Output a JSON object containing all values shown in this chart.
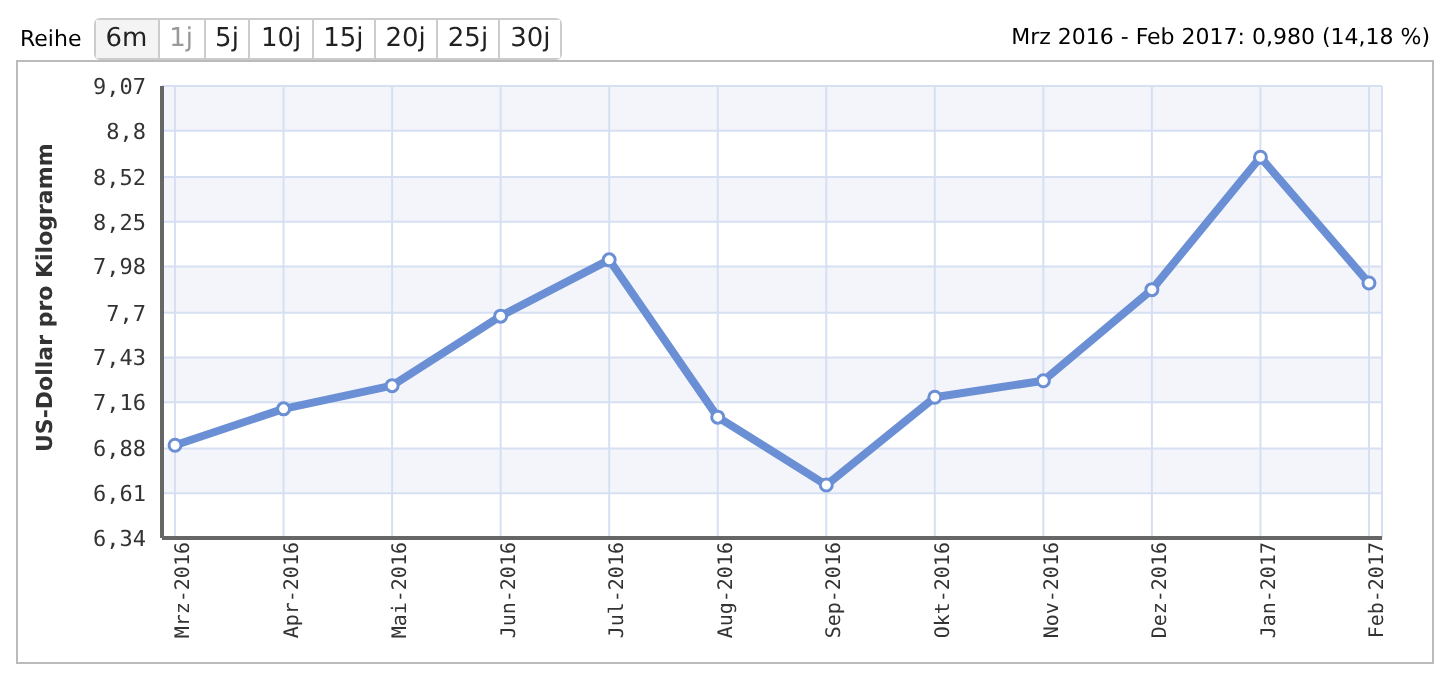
{
  "chart_data": {
    "type": "line",
    "subtitle": "Mrz 2016 - Feb 2017: 0,980 (14,18 %)",
    "ylabel": "US-Dollar pro Kilogramm",
    "annotations": [
      "Reihe",
      "6m",
      "1j",
      "5j",
      "10j",
      "15j",
      "20j",
      "25j",
      "30j"
    ],
    "categories": [
      "Mrz-2016",
      "Apr-2016",
      "Mai-2016",
      "Jun-2016",
      "Jul-2016",
      "Aug-2016",
      "Sep-2016",
      "Okt-2016",
      "Nov-2016",
      "Dez-2016",
      "Jan-2017",
      "Feb-2017"
    ],
    "series": [
      {
        "color": "#6a8fd4",
        "values": [
          6.9,
          7.12,
          7.26,
          7.68,
          8.02,
          7.07,
          6.66,
          7.19,
          7.29,
          7.84,
          8.64,
          7.88
        ]
      }
    ],
    "ylim": [
      6.34,
      9.07
    ],
    "yticks": [
      {
        "value": 6.34,
        "label": "6,34"
      },
      {
        "value": 6.61,
        "label": "6,61"
      },
      {
        "value": 6.88,
        "label": "6,88"
      },
      {
        "value": 7.16,
        "label": "7,16"
      },
      {
        "value": 7.43,
        "label": "7,43"
      },
      {
        "value": 7.7,
        "label": "7,7"
      },
      {
        "value": 7.98,
        "label": "7,98"
      },
      {
        "value": 8.25,
        "label": "8,25"
      },
      {
        "value": 8.52,
        "label": "8,52"
      },
      {
        "value": 8.8,
        "label": "8,8"
      },
      {
        "value": 9.07,
        "label": "9,07"
      }
    ],
    "grid": true,
    "legend": false,
    "marker": "circle",
    "line_style": "solid"
  }
}
